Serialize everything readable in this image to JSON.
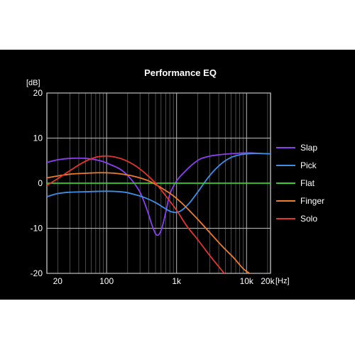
{
  "chart_data": {
    "type": "line",
    "title": "Performance EQ",
    "ylabel": "[dB]",
    "xlabel": "[Hz]",
    "x_scale": "log",
    "xlim": [
      14,
      22000
    ],
    "ylim": [
      -20,
      20
    ],
    "y_ticks": [
      20,
      10,
      0,
      -10,
      -20
    ],
    "x_ticks": [
      {
        "value": 20,
        "label": "20"
      },
      {
        "value": 100,
        "label": "100"
      },
      {
        "value": 1000,
        "label": "1k"
      },
      {
        "value": 10000,
        "label": "10k"
      },
      {
        "value": 20000,
        "label": "20k"
      }
    ],
    "grid": true,
    "legend_position": "right",
    "series": [
      {
        "name": "Slap",
        "color": "#8a3ff0",
        "x": [
          14,
          20,
          30,
          50,
          80,
          110,
          160,
          220,
          300,
          380,
          450,
          520,
          600,
          700,
          800,
          1000,
          1300,
          1700,
          2200,
          3000,
          4000,
          5500,
          7000,
          9000,
          12000,
          15000,
          22000
        ],
        "y": [
          4.6,
          5.2,
          5.5,
          5.5,
          5.0,
          4.2,
          3.0,
          1.0,
          -2.0,
          -6.0,
          -9.5,
          -11.5,
          -10.5,
          -6.5,
          -2.5,
          0.5,
          2.5,
          4.2,
          5.4,
          6.0,
          6.3,
          6.5,
          6.6,
          6.7,
          6.7,
          6.6,
          6.5
        ]
      },
      {
        "name": "Pick",
        "color": "#3d8fe6",
        "x": [
          14,
          20,
          30,
          50,
          80,
          120,
          180,
          250,
          350,
          500,
          650,
          800,
          950,
          1100,
          1300,
          1600,
          2000,
          2600,
          3300,
          4500,
          6000,
          8000,
          10000,
          13000,
          16000,
          22000
        ],
        "y": [
          -3.0,
          -2.3,
          -2.0,
          -1.9,
          -1.8,
          -1.8,
          -2.0,
          -2.5,
          -3.2,
          -4.3,
          -5.4,
          -6.2,
          -6.5,
          -6.3,
          -5.5,
          -4.0,
          -2.0,
          0.5,
          2.5,
          4.5,
          5.7,
          6.3,
          6.5,
          6.6,
          6.6,
          6.5
        ]
      },
      {
        "name": "Flat",
        "color": "#39d02a",
        "x": [
          14,
          22000
        ],
        "y": [
          0,
          0
        ]
      },
      {
        "name": "Finger",
        "color": "#f07b2a",
        "x": [
          14,
          20,
          30,
          50,
          70,
          100,
          150,
          250,
          400,
          600,
          900,
          1300,
          2000,
          3000,
          4500,
          6500,
          9000,
          11000,
          13000
        ],
        "y": [
          1.2,
          1.6,
          2.0,
          2.2,
          2.3,
          2.3,
          2.1,
          1.5,
          0.5,
          -1.0,
          -2.8,
          -5.0,
          -8.0,
          -11.0,
          -14.0,
          -16.5,
          -19.0,
          -20.0,
          -21.0
        ]
      },
      {
        "name": "Solo",
        "color": "#e0362e",
        "x": [
          14,
          20,
          30,
          45,
          65,
          90,
          120,
          170,
          250,
          350,
          500,
          700,
          1000,
          1400,
          2000,
          2800,
          4000,
          5500,
          7000,
          9000
        ],
        "y": [
          -0.5,
          1.0,
          2.8,
          4.5,
          5.6,
          6.0,
          5.9,
          5.3,
          4.0,
          2.3,
          0.0,
          -2.8,
          -6.0,
          -9.5,
          -12.5,
          -15.5,
          -18.5,
          -21.0,
          -22.0,
          -23.0
        ]
      }
    ]
  }
}
